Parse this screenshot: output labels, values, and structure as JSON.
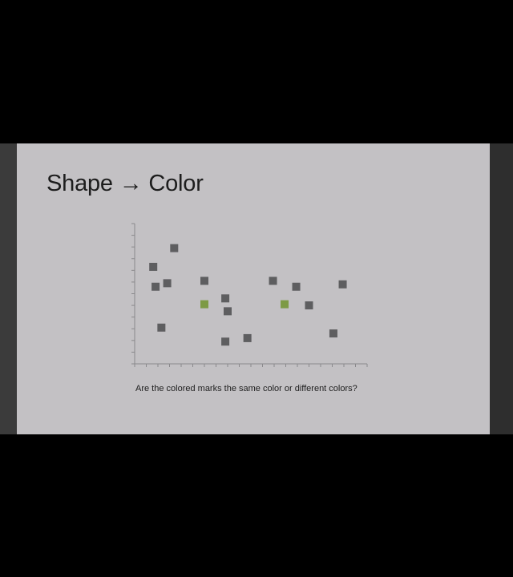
{
  "slide": {
    "title": "Shape → Color",
    "question": "Are the colored marks the same color or different colors?"
  },
  "chart_data": {
    "type": "scatter",
    "title": "",
    "xlabel": "",
    "ylabel": "",
    "xlim": [
      0,
      20
    ],
    "ylim": [
      0,
      12
    ],
    "grid": false,
    "x_ticks": 20,
    "y_ticks": 12,
    "colors": {
      "mark": "#5e5e60",
      "highlight": "#7d9a45"
    },
    "series": [
      {
        "points": [
          {
            "x": 3.4,
            "y": 9.9,
            "color": "mark"
          },
          {
            "x": 1.6,
            "y": 8.3,
            "color": "mark"
          },
          {
            "x": 1.8,
            "y": 6.6,
            "color": "mark"
          },
          {
            "x": 2.8,
            "y": 6.9,
            "color": "mark"
          },
          {
            "x": 6.0,
            "y": 7.1,
            "color": "mark"
          },
          {
            "x": 6.0,
            "y": 5.1,
            "color": "highlight"
          },
          {
            "x": 7.8,
            "y": 5.6,
            "color": "mark"
          },
          {
            "x": 8.0,
            "y": 4.5,
            "color": "mark"
          },
          {
            "x": 2.3,
            "y": 3.1,
            "color": "mark"
          },
          {
            "x": 7.8,
            "y": 1.9,
            "color": "mark"
          },
          {
            "x": 9.7,
            "y": 2.2,
            "color": "mark"
          },
          {
            "x": 11.9,
            "y": 7.1,
            "color": "mark"
          },
          {
            "x": 12.9,
            "y": 5.1,
            "color": "highlight"
          },
          {
            "x": 13.9,
            "y": 6.6,
            "color": "mark"
          },
          {
            "x": 15.0,
            "y": 5.0,
            "color": "mark"
          },
          {
            "x": 17.1,
            "y": 2.6,
            "color": "mark"
          },
          {
            "x": 17.9,
            "y": 6.8,
            "color": "mark"
          }
        ]
      }
    ]
  }
}
